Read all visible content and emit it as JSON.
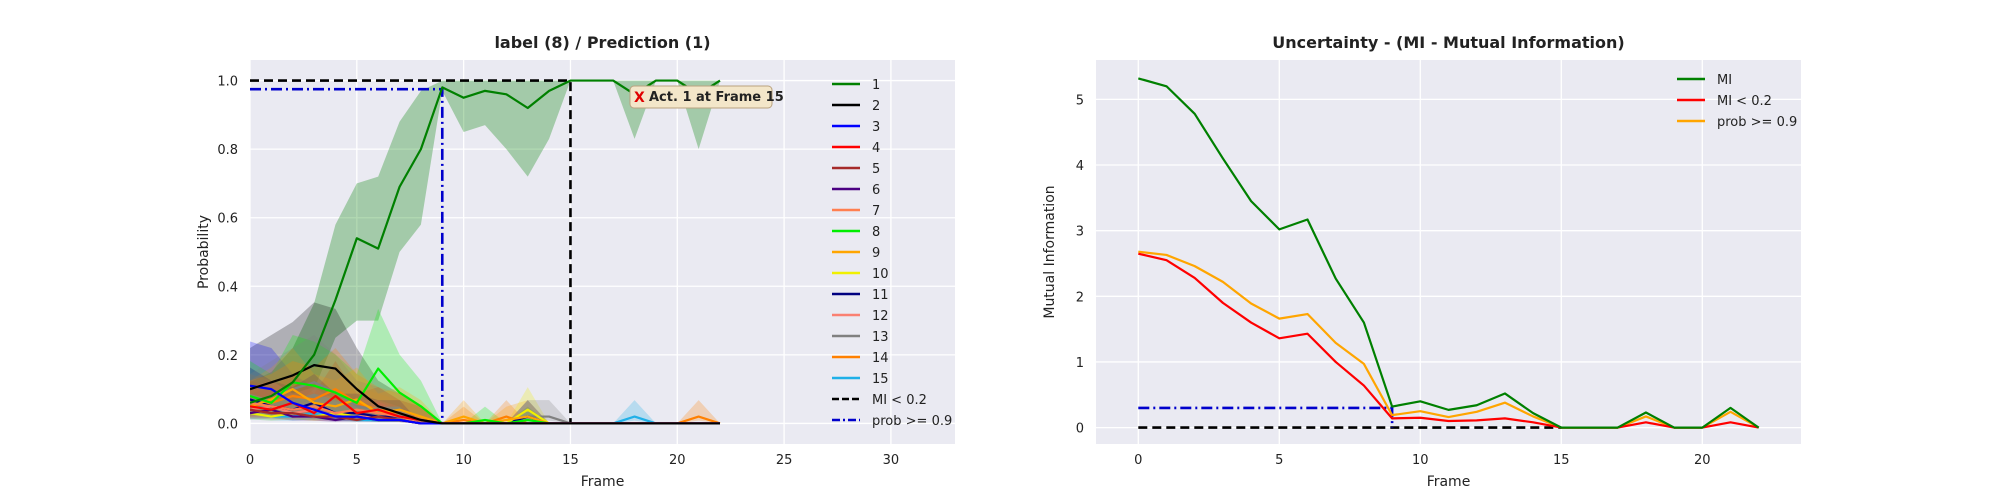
{
  "chart_data": [
    {
      "type": "line",
      "title": "label (8) / Prediction (1)",
      "xlabel": "Frame",
      "ylabel": "Probability",
      "xlim": [
        0,
        33
      ],
      "ylim": [
        -0.06,
        1.06
      ],
      "xticks": [
        0,
        5,
        10,
        15,
        20,
        25,
        30
      ],
      "yticks": [
        0.0,
        0.2,
        0.4,
        0.6,
        0.8,
        1.0
      ],
      "grid": true,
      "legend_position": "right",
      "x": [
        0,
        1,
        2,
        3,
        4,
        5,
        6,
        7,
        8,
        9,
        10,
        11,
        12,
        13,
        14,
        15,
        16,
        17,
        18,
        19,
        20,
        21,
        22
      ],
      "series": [
        {
          "name": "1",
          "color": "#008000",
          "values": [
            0.06,
            0.08,
            0.12,
            0.2,
            0.36,
            0.54,
            0.51,
            0.69,
            0.8,
            0.98,
            0.95,
            0.97,
            0.96,
            0.92,
            0.97,
            1.0,
            1.0,
            1.0,
            0.96,
            1.0,
            1.0,
            0.96,
            1.0
          ],
          "band_lower": [
            0.02,
            0.03,
            0.05,
            0.1,
            0.25,
            0.3,
            0.3,
            0.5,
            0.58,
            0.97,
            0.85,
            0.87,
            0.8,
            0.72,
            0.83,
            1.0,
            1.0,
            1.0,
            0.83,
            1.0,
            1.0,
            0.8,
            1.0
          ],
          "band_upper": [
            0.12,
            0.15,
            0.22,
            0.35,
            0.58,
            0.7,
            0.72,
            0.88,
            0.97,
            1.0,
            1.0,
            1.0,
            1.0,
            1.0,
            1.0,
            1.0,
            1.0,
            1.0,
            1.0,
            1.0,
            1.0,
            1.0,
            1.0
          ]
        },
        {
          "name": "2",
          "color": "#000000",
          "values": [
            0.1,
            0.12,
            0.14,
            0.17,
            0.16,
            0.1,
            0.05,
            0.03,
            0.01,
            0.0,
            0.0,
            0.0,
            0.0,
            0.0,
            0.0,
            0.0,
            0.0,
            0.0,
            0.0,
            0.0,
            0.0,
            0.0,
            0.0
          ]
        },
        {
          "name": "3",
          "color": "#0000ff",
          "values": [
            0.11,
            0.1,
            0.06,
            0.04,
            0.02,
            0.02,
            0.01,
            0.01,
            0.0,
            0.0,
            0.0,
            0.0,
            0.0,
            0.0,
            0.0,
            0.0,
            0.0,
            0.0,
            0.0,
            0.0,
            0.0,
            0.0,
            0.0
          ]
        },
        {
          "name": "4",
          "color": "#ff0000",
          "values": [
            0.05,
            0.04,
            0.06,
            0.03,
            0.08,
            0.03,
            0.04,
            0.02,
            0.01,
            0.0,
            0.0,
            0.0,
            0.0,
            0.0,
            0.0,
            0.0,
            0.0,
            0.0,
            0.0,
            0.0,
            0.0,
            0.0,
            0.0
          ]
        },
        {
          "name": "5",
          "color": "#a52a2a",
          "values": [
            0.04,
            0.03,
            0.03,
            0.02,
            0.02,
            0.01,
            0.02,
            0.01,
            0.0,
            0.0,
            0.0,
            0.0,
            0.0,
            0.0,
            0.0,
            0.0,
            0.0,
            0.0,
            0.0,
            0.0,
            0.0,
            0.0,
            0.0
          ]
        },
        {
          "name": "6",
          "color": "#4b0082",
          "values": [
            0.03,
            0.04,
            0.02,
            0.02,
            0.01,
            0.02,
            0.01,
            0.01,
            0.0,
            0.0,
            0.0,
            0.0,
            0.0,
            0.0,
            0.0,
            0.0,
            0.0,
            0.0,
            0.0,
            0.0,
            0.0,
            0.0,
            0.0
          ]
        },
        {
          "name": "7",
          "color": "#ff7f50",
          "values": [
            0.06,
            0.05,
            0.04,
            0.05,
            0.03,
            0.04,
            0.03,
            0.02,
            0.0,
            0.0,
            0.0,
            0.0,
            0.0,
            0.0,
            0.0,
            0.0,
            0.0,
            0.0,
            0.0,
            0.0,
            0.0,
            0.0,
            0.0
          ]
        },
        {
          "name": "8",
          "color": "#00ee00",
          "values": [
            0.08,
            0.06,
            0.12,
            0.11,
            0.09,
            0.06,
            0.16,
            0.09,
            0.05,
            0.0,
            0.0,
            0.01,
            0.0,
            0.01,
            0.0,
            0.0,
            0.0,
            0.0,
            0.0,
            0.0,
            0.0,
            0.0,
            0.0
          ]
        },
        {
          "name": "9",
          "color": "#ffa500",
          "values": [
            0.05,
            0.07,
            0.1,
            0.06,
            0.05,
            0.07,
            0.03,
            0.04,
            0.02,
            0.0,
            0.02,
            0.0,
            0.01,
            0.02,
            0.0,
            0.0,
            0.0,
            0.0,
            0.0,
            0.0,
            0.0,
            0.0,
            0.0
          ]
        },
        {
          "name": "10",
          "color": "#f0f000",
          "values": [
            0.03,
            0.02,
            0.03,
            0.02,
            0.03,
            0.02,
            0.01,
            0.01,
            0.0,
            0.0,
            0.0,
            0.0,
            0.0,
            0.04,
            0.0,
            0.0,
            0.0,
            0.0,
            0.0,
            0.0,
            0.0,
            0.0,
            0.0
          ]
        },
        {
          "name": "11",
          "color": "#000080",
          "values": [
            0.07,
            0.05,
            0.04,
            0.06,
            0.03,
            0.03,
            0.02,
            0.02,
            0.0,
            0.0,
            0.0,
            0.0,
            0.0,
            0.02,
            0.0,
            0.0,
            0.0,
            0.0,
            0.0,
            0.0,
            0.0,
            0.0,
            0.0
          ]
        },
        {
          "name": "12",
          "color": "#fa8072",
          "values": [
            0.04,
            0.05,
            0.03,
            0.04,
            0.02,
            0.02,
            0.02,
            0.01,
            0.0,
            0.0,
            0.0,
            0.0,
            0.0,
            0.0,
            0.0,
            0.0,
            0.0,
            0.0,
            0.0,
            0.0,
            0.0,
            0.0,
            0.0
          ]
        },
        {
          "name": "13",
          "color": "#808080",
          "values": [
            0.06,
            0.08,
            0.1,
            0.12,
            0.09,
            0.05,
            0.04,
            0.02,
            0.01,
            0.0,
            0.0,
            0.0,
            0.0,
            0.02,
            0.02,
            0.0,
            0.0,
            0.0,
            0.0,
            0.0,
            0.0,
            0.0,
            0.0
          ]
        },
        {
          "name": "14",
          "color": "#ff8000",
          "values": [
            0.05,
            0.06,
            0.08,
            0.07,
            0.1,
            0.06,
            0.04,
            0.03,
            0.01,
            0.0,
            0.01,
            0.0,
            0.02,
            0.0,
            0.0,
            0.0,
            0.0,
            0.0,
            0.0,
            0.0,
            0.0,
            0.02,
            0.0
          ]
        },
        {
          "name": "15",
          "color": "#1fb0e8",
          "values": [
            0.03,
            0.02,
            0.02,
            0.03,
            0.02,
            0.01,
            0.01,
            0.01,
            0.0,
            0.0,
            0.0,
            0.0,
            0.0,
            0.0,
            0.0,
            0.0,
            0.0,
            0.0,
            0.02,
            0.0,
            0.0,
            0.0,
            0.0
          ]
        }
      ],
      "reference_lines": [
        {
          "name": "MI < 0.2",
          "color": "#000000",
          "style": "dashed",
          "x": [
            0,
            15,
            15
          ],
          "y": [
            1.0,
            1.0,
            0.0
          ]
        },
        {
          "name": "prob >= 0.9",
          "color": "#0000cc",
          "style": "dashdot",
          "x": [
            0,
            9,
            9
          ],
          "y": [
            0.975,
            0.975,
            0.0
          ]
        }
      ],
      "annotation": {
        "marker": "X",
        "text": "Act. 1 at Frame 15"
      }
    },
    {
      "type": "line",
      "title": "Uncertainty - (MI - Mutual Information)",
      "xlabel": "Frame",
      "ylabel": "Mutual Information",
      "xlim": [
        -1.5,
        23.5
      ],
      "ylim": [
        -0.25,
        5.6
      ],
      "xticks": [
        0,
        5,
        10,
        15,
        20
      ],
      "yticks": [
        0,
        1,
        2,
        3,
        4,
        5
      ],
      "grid": true,
      "legend_position": "top-right",
      "x": [
        0,
        1,
        2,
        3,
        4,
        5,
        6,
        7,
        8,
        9,
        10,
        11,
        12,
        13,
        14,
        15,
        16,
        17,
        18,
        19,
        20,
        21,
        22
      ],
      "series": [
        {
          "name": "MI",
          "color": "#008000",
          "values": [
            5.32,
            5.2,
            4.78,
            4.1,
            3.45,
            3.02,
            3.17,
            2.27,
            1.6,
            0.32,
            0.4,
            0.27,
            0.34,
            0.52,
            0.22,
            0.0,
            0.0,
            0.0,
            0.23,
            0.0,
            0.0,
            0.3,
            0.0
          ]
        },
        {
          "name": "MI < 0.2",
          "color": "#ff0000",
          "values": [
            2.65,
            2.55,
            2.28,
            1.9,
            1.6,
            1.36,
            1.43,
            1.0,
            0.64,
            0.14,
            0.15,
            0.1,
            0.11,
            0.14,
            0.08,
            0.0,
            0.0,
            0.0,
            0.08,
            0.0,
            0.0,
            0.08,
            0.0
          ]
        },
        {
          "name": "prob >= 0.9",
          "color": "#ffa500",
          "values": [
            2.68,
            2.63,
            2.46,
            2.22,
            1.89,
            1.66,
            1.73,
            1.29,
            0.97,
            0.19,
            0.25,
            0.16,
            0.24,
            0.38,
            0.17,
            0.0,
            0.0,
            0.0,
            0.17,
            0.0,
            0.0,
            0.24,
            0.0
          ]
        }
      ],
      "reference_lines": [
        {
          "color": "#000000",
          "style": "dashed",
          "x": [
            0,
            15,
            15
          ],
          "y": [
            0.0,
            0.0,
            0.0
          ]
        },
        {
          "color": "#0000cc",
          "style": "dashdot",
          "x": [
            0,
            9,
            9
          ],
          "y": [
            0.3,
            0.3,
            0.0
          ]
        }
      ]
    }
  ]
}
